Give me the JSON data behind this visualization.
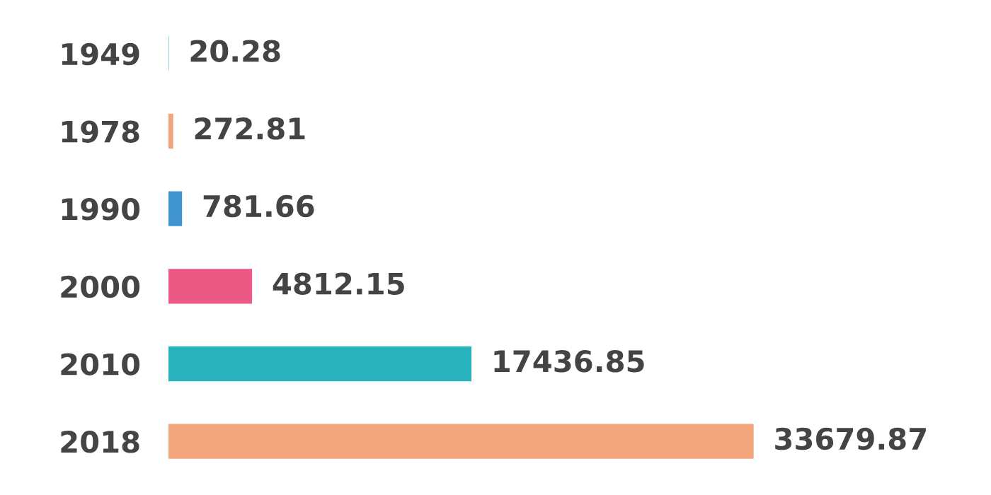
{
  "chart_data": {
    "type": "bar",
    "orientation": "horizontal",
    "categories": [
      "1949",
      "1978",
      "1990",
      "2000",
      "2010",
      "2018"
    ],
    "values": [
      20.28,
      272.81,
      781.66,
      4812.15,
      17436.85,
      33679.87
    ],
    "colors": [
      "#2ab2bd",
      "#f3a27c",
      "#3f93cf",
      "#ea5a85",
      "#2ab2bd",
      "#f4a67c"
    ],
    "tick_labels": "y",
    "data_labels": true,
    "grid": false,
    "legend": false
  }
}
